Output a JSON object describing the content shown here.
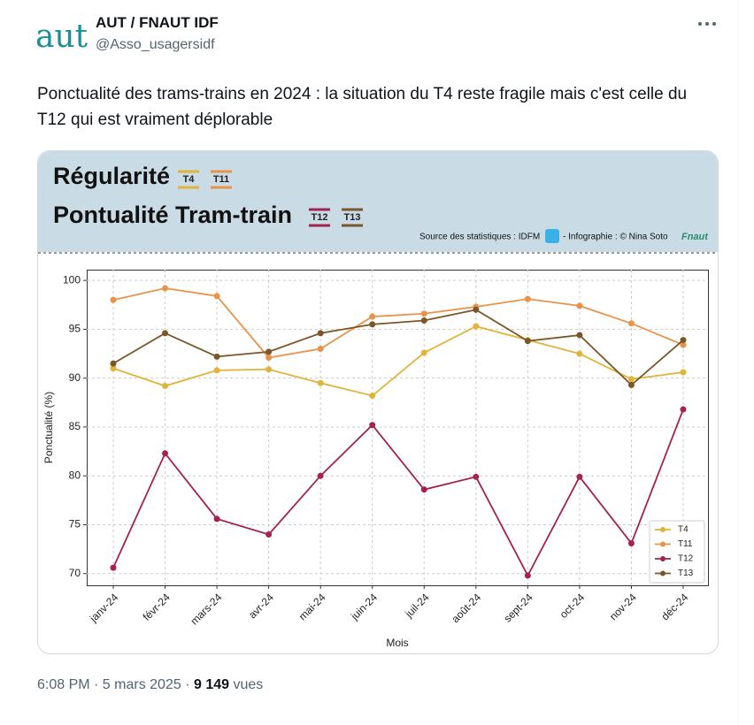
{
  "author": {
    "name": "AUT / FNAUT IDF",
    "handle": "@Asso_usagersidf",
    "logo": "aut"
  },
  "text": "Ponctualité des trams-trains en 2024 : la situation du T4 reste fragile mais c'est celle du T12 qui est vraiment déplorable",
  "footer": {
    "time": "6:08 PM · 5 mars 2025 ·",
    "views": "9 149",
    "views_label": "vues"
  },
  "chart_data": {
    "type": "line",
    "title": "Régularité",
    "subtitle": "Pontualité Tram-train",
    "source": "Source des statistiques : IDFM",
    "credit": "- Infographie : © Nina Soto",
    "credit_logo": "Fnaut",
    "xlabel": "Mois",
    "ylabel": "Ponctualité (%)",
    "categories": [
      "janv-24",
      "févr-24",
      "mars-24",
      "avr-24",
      "mai-24",
      "juin-24",
      "juil-24",
      "août-24",
      "sept-24",
      "oct-24",
      "nov-24",
      "déc-24"
    ],
    "series": [
      {
        "name": "T4",
        "color": "#e0b43a",
        "values": [
          91.0,
          89.2,
          90.8,
          90.9,
          89.5,
          88.2,
          92.6,
          95.3,
          93.9,
          92.5,
          89.9,
          90.6
        ]
      },
      {
        "name": "T11",
        "color": "#e8924a",
        "values": [
          98.0,
          99.2,
          98.4,
          92.1,
          93.0,
          96.3,
          96.6,
          97.3,
          98.1,
          97.4,
          95.6,
          93.4
        ]
      },
      {
        "name": "T12",
        "color": "#a3224f",
        "values": [
          70.6,
          82.3,
          75.6,
          74.0,
          80.0,
          85.2,
          78.6,
          79.9,
          69.8,
          79.9,
          73.1,
          86.8
        ]
      },
      {
        "name": "T13",
        "color": "#7a5628",
        "values": [
          91.5,
          94.6,
          92.2,
          92.7,
          94.6,
          95.5,
          95.9,
          97.0,
          93.8,
          94.4,
          89.3,
          93.9
        ]
      }
    ],
    "ylim": [
      68.8,
      101.1
    ],
    "yticks": [
      70,
      75,
      80,
      85,
      90,
      95,
      100
    ],
    "grid": true,
    "legend": "lower right"
  }
}
